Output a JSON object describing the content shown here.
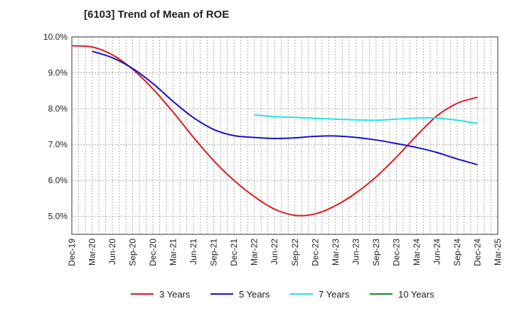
{
  "chart_data": {
    "type": "line",
    "title": "[6103]  Trend of Mean of ROE",
    "xlabel": "",
    "ylabel": "",
    "x_ticks": [
      "Dec-19",
      "Mar-20",
      "Jun-20",
      "Sep-20",
      "Dec-20",
      "Mar-21",
      "Jun-21",
      "Sep-21",
      "Dec-21",
      "Mar-22",
      "Jun-22",
      "Sep-22",
      "Dec-22",
      "Mar-23",
      "Jun-23",
      "Sep-23",
      "Dec-23",
      "Mar-24",
      "Jun-24",
      "Sep-24",
      "Dec-24",
      "Mar-25"
    ],
    "y_ticks": [
      "5.0%",
      "6.0%",
      "7.0%",
      "8.0%",
      "9.0%",
      "10.0%"
    ],
    "ylim": [
      4.5,
      10.0
    ],
    "grid": true,
    "legend_position": "bottom",
    "series": [
      {
        "name": "3 Years",
        "color": "#e31a1c",
        "values": [
          9.75,
          9.72,
          9.5,
          9.1,
          8.55,
          7.9,
          7.2,
          6.55,
          6.0,
          5.55,
          5.2,
          5.03,
          5.07,
          5.3,
          5.65,
          6.1,
          6.65,
          7.25,
          7.8,
          8.15,
          8.32,
          null
        ]
      },
      {
        "name": "5 Years",
        "color": "#1414cc",
        "values": [
          null,
          9.6,
          9.42,
          9.12,
          8.7,
          8.2,
          7.75,
          7.42,
          7.25,
          7.2,
          7.17,
          7.19,
          7.23,
          7.24,
          7.2,
          7.13,
          7.03,
          6.92,
          6.78,
          6.6,
          6.44,
          null
        ]
      },
      {
        "name": "7 Years",
        "color": "#22e5e5",
        "values": [
          null,
          null,
          null,
          null,
          null,
          null,
          null,
          null,
          null,
          7.83,
          7.78,
          7.76,
          7.73,
          7.71,
          7.69,
          7.68,
          7.71,
          7.74,
          7.74,
          7.68,
          7.59,
          null
        ]
      },
      {
        "name": "10 Years",
        "color": "#1a8a1a",
        "values": [
          null,
          null,
          null,
          null,
          null,
          null,
          null,
          null,
          null,
          null,
          null,
          null,
          null,
          null,
          null,
          null,
          null,
          null,
          null,
          null,
          null,
          null
        ]
      }
    ]
  }
}
